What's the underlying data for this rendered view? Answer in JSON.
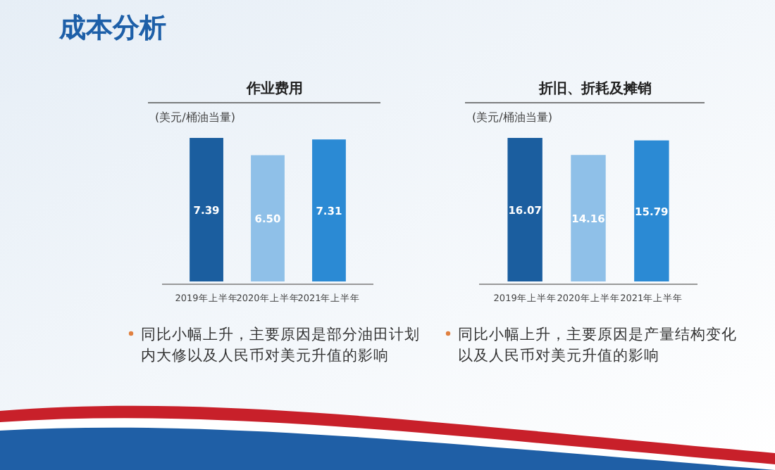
{
  "chart_data": [
    {
      "type": "other",
      "title": "成本分析"
    },
    {
      "type": "bar",
      "title": "作业费用",
      "ylabel": "(美元/桶油当量)",
      "categories": [
        "2019年上半年",
        "2020年上半年",
        "2021年上半年"
      ],
      "values": [
        7.39,
        6.5,
        7.31
      ],
      "value_labels": [
        "7.39",
        "6.50",
        "7.31"
      ],
      "colors": [
        "#1b5e9f",
        "#8fc0e8",
        "#2b8ad4"
      ],
      "data_labels": true,
      "annotations": [
        "同比小幅上升，主要原因是部分油田计划内大修以及人民币对美元升值的影响"
      ]
    },
    {
      "type": "bar",
      "title": "折旧、折耗及摊销",
      "ylabel": "(美元/桶油当量)",
      "categories": [
        "2019年上半年",
        "2020年上半年",
        "2021年上半年"
      ],
      "values": [
        16.07,
        14.16,
        15.79
      ],
      "value_labels": [
        "16.07",
        "14.16",
        "15.79"
      ],
      "colors": [
        "#1b5e9f",
        "#8fc0e8",
        "#2b8ad4"
      ],
      "data_labels": true,
      "annotations": [
        "同比小幅上升，主要原因是产量结构变化以及人民币对美元升值的影响"
      ]
    }
  ]
}
